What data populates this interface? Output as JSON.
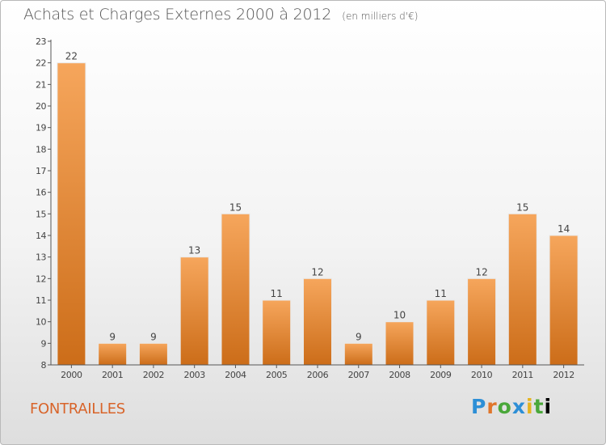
{
  "header": {
    "title": "Achats et Charges Externes 2000 à 2012",
    "unit": "(en milliers d'€)"
  },
  "footer": {
    "commune": "FONTRAILLES",
    "brand": [
      "P",
      "r",
      "o",
      "x",
      "i",
      "t",
      "i"
    ]
  },
  "colors": {
    "bar_light": "#f6a65c",
    "bar_dark": "#cc6d19",
    "axis": "#555555",
    "commune_text": "#d8642a"
  },
  "chart_data": {
    "type": "bar",
    "title": "Achats et Charges Externes 2000 à 2012",
    "subtitle": "(en milliers d'€)",
    "categories": [
      "2000",
      "2001",
      "2002",
      "2003",
      "2004",
      "2005",
      "2006",
      "2007",
      "2008",
      "2009",
      "2010",
      "2011",
      "2012"
    ],
    "values": [
      22,
      9,
      9,
      13,
      15,
      11,
      12,
      9,
      10,
      11,
      12,
      15,
      14
    ],
    "xlabel": "",
    "ylabel": "",
    "ylim": [
      8,
      23
    ],
    "yticks": [
      8,
      9,
      10,
      11,
      12,
      13,
      14,
      15,
      16,
      17,
      18,
      19,
      20,
      21,
      22,
      23
    ],
    "grid": false,
    "data_labels": true
  }
}
